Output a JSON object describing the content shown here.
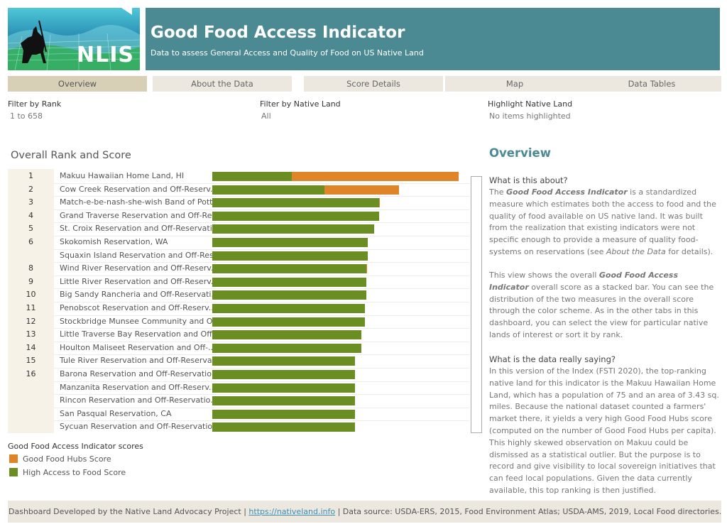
{
  "header": {
    "title": "Good Food Access Indicator",
    "subtitle": "Data to assess General Access and Quality of Food on US Native Land",
    "logo_text": "NLIS"
  },
  "tabs": [
    "Overview",
    "About the Data",
    "Score Details",
    "Map",
    "Data Tables"
  ],
  "filters": {
    "rank_label": "Filter by Rank",
    "rank_value": "1 to 658",
    "land_label": "Filter by Native Land",
    "land_value": "All",
    "highlight_label": "Highlight Native Land",
    "highlight_value": "No items highlighted"
  },
  "chart_data": {
    "type": "bar",
    "title": "Overall Rank and Score",
    "stacked": true,
    "orientation": "horizontal",
    "categories": [
      "Makuu Hawaiian Home Land, HI",
      "Cow Creek Reservation and Off-Reserv..",
      "Match-e-be-nash-she-wish Band of Pott..",
      "Grand Traverse Reservation and Off-Re..",
      "St. Croix Reservation and Off-Reservati..",
      "Skokomish Reservation, WA",
      "Squaxin Island Reservation and Off-Res..",
      "Wind River Reservation and Off-Reserv..",
      "Little River Reservation and Off-Reserv..",
      "Big Sandy Rancheria and Off-Reservati..",
      "Penobscot Reservation and Off-Reserv..",
      "Stockbridge Munsee Community and Of..",
      "Little Traverse Bay Reservation and Off..",
      "Houlton Maliseet Reservation and Off-..",
      "Tule River Reservation and Off-Reserva..",
      "Barona Reservation and Off-Reservatio..",
      "Manzanita Reservation and Off-Reserv..",
      "Rincon Reservation and Off-Reservatio..",
      "San Pasqual Reservation, CA",
      "Sycuan Reservation and Off-Reservatio.."
    ],
    "ranks": [
      "1",
      "2",
      "3",
      "4",
      "5",
      "6",
      "",
      "8",
      "9",
      "10",
      "11",
      "12",
      "13",
      "14",
      "15",
      "16",
      "",
      "",
      "",
      ""
    ],
    "series": [
      {
        "name": "High Access to Food Score",
        "color": "#6b8e23",
        "values": [
          0.32,
          0.45,
          0.67,
          0.67,
          0.65,
          0.625,
          0.625,
          0.62,
          0.62,
          0.62,
          0.615,
          0.615,
          0.6,
          0.6,
          0.575,
          0.575,
          0.575,
          0.575,
          0.575,
          0.575
        ]
      },
      {
        "name": "Good Food Hubs Score",
        "color": "#e08428",
        "values": [
          0.67,
          0.3,
          0.003,
          0.0,
          0.0,
          0.0,
          0.0,
          0.003,
          0.0,
          0.0,
          0.0,
          0.0,
          0.0,
          0.0,
          0.0,
          0.0,
          0.0,
          0.0,
          0.0,
          0.0
        ]
      }
    ],
    "xlim": [
      0,
      1
    ],
    "legend_title": "Good Food Access Indicator scores",
    "legend_position": "bottom-left"
  },
  "overview": {
    "title": "Overview",
    "q1": "What is this about?",
    "p1": "The Good Food Access Indicator  is a standardized measure which estimates both the access to food and the quality of food available on US native land. It was built from the realization that existing indicators were not specific enough to provide a measure of quality food-systems on reservations (see About the Data for details).",
    "p2": "This view shows the overall Good Food Access Indicator overall score as a stacked bar. You can see the distribution of the two measures in the overall score through the color scheme. As in the other tabs in this dashboard, you can select the view for particular native lands of interest or sort it by rank.",
    "q2": "What is the data really saying?",
    "p3": "In this version of the Index (FSTI 2020), the top-ranking native land for this indicator is the Makuu Hawaiian Home Land, which has a population of 75 and an area of 3.43  sq. miles. Because the national dataset counted a farmers' market there, it yields a very high Good Food Hubs score (computed on the number of Good Food Hubs per capita). This highly skewed observation on Makuu could be dismissed as a statistical outlier. But the purpose is to record and give visibility to local sovereign initiatives that can feed local populations. Given the data currently available, this top ranking is then justified."
  },
  "footer": {
    "prefix": "Dashboard Developed by the Native Land Advocacy Project | ",
    "link": "https://nativeland.info",
    "suffix": " | Data source: USDA-ERS, 2015, Food Environment Atlas; USDA-AMS, 2019, Local Food directories."
  }
}
